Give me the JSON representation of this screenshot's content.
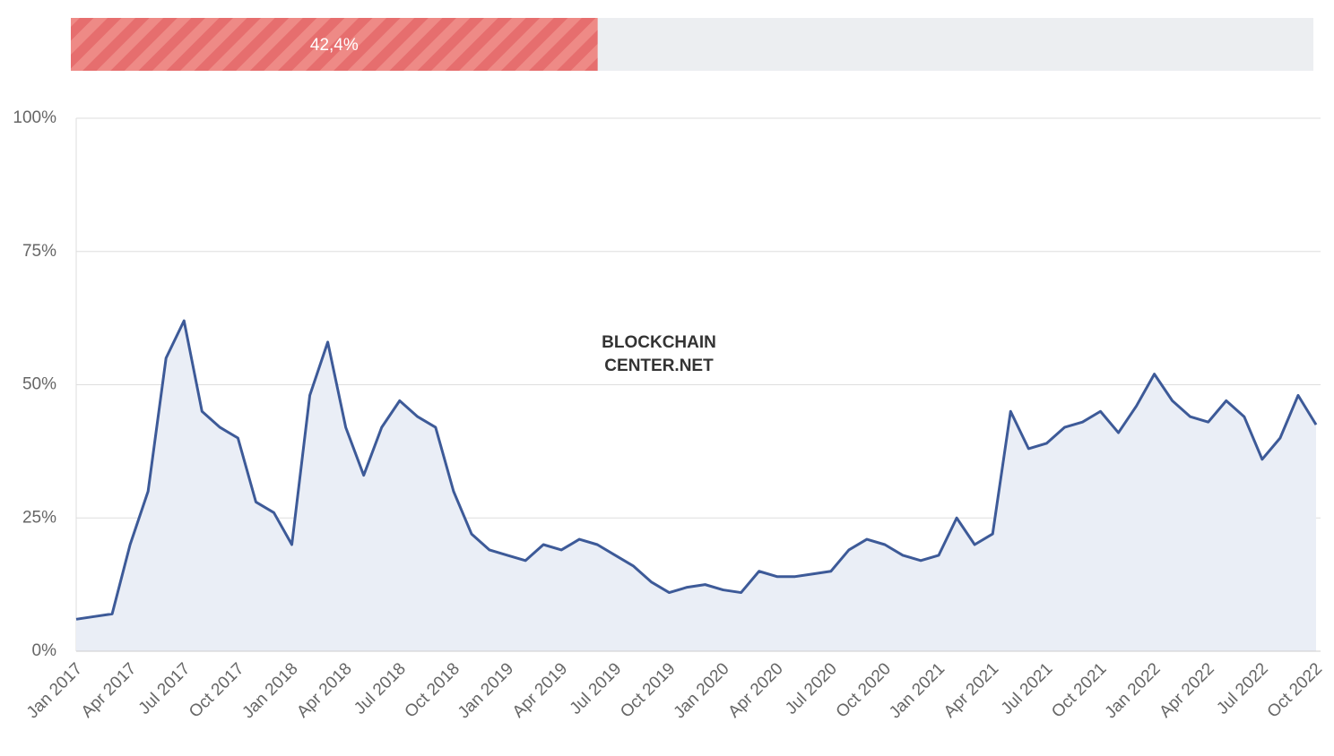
{
  "progress": {
    "value": 42.4,
    "label": "42,4%",
    "range": [
      0,
      100
    ]
  },
  "chart_data": {
    "type": "line",
    "watermark": [
      "BLOCKCHAIN",
      "CENTER.NET"
    ],
    "categories": [
      "Jan 2017",
      null,
      null,
      "Apr 2017",
      null,
      null,
      "Jul 2017",
      null,
      null,
      "Oct 2017",
      null,
      null,
      "Jan 2018",
      null,
      null,
      "Apr 2018",
      null,
      null,
      "Jul 2018",
      null,
      null,
      "Oct 2018",
      null,
      null,
      "Jan 2019",
      null,
      null,
      "Apr 2019",
      null,
      null,
      "Jul 2019",
      null,
      null,
      "Oct 2019",
      null,
      null,
      "Jan 2020",
      null,
      null,
      "Apr 2020",
      null,
      null,
      "Jul 2020",
      null,
      null,
      "Oct 2020",
      null,
      null,
      "Jan 2021",
      null,
      null,
      "Apr 2021",
      null,
      null,
      "Jul 2021",
      null,
      null,
      "Oct 2021",
      null,
      null,
      "Jan 2022",
      null,
      null,
      "Apr 2022",
      null,
      null,
      "Jul 2022",
      null,
      null,
      "Oct 2022"
    ],
    "series": [
      {
        "color": "#3d5a98",
        "fill": "#eaeef6",
        "values": [
          6,
          6.5,
          7,
          20,
          30,
          55,
          62,
          45,
          42,
          40,
          28,
          26,
          20,
          48,
          58,
          42,
          33,
          42,
          47,
          44,
          42,
          30,
          22,
          19,
          18,
          17,
          20,
          19,
          21,
          20,
          18,
          16,
          13,
          11,
          12,
          12.5,
          11.5,
          11,
          15,
          14,
          14,
          14.5,
          15,
          19,
          21,
          20,
          18,
          17,
          18,
          25,
          20,
          22,
          45,
          38,
          39,
          42,
          43,
          45,
          41,
          46,
          52,
          47,
          44,
          43,
          47,
          44,
          36,
          40,
          48,
          42.5
        ]
      }
    ],
    "ylim": [
      0,
      100
    ],
    "yticks": [
      {
        "value": 0,
        "label": "0%"
      },
      {
        "value": 25,
        "label": "25%"
      },
      {
        "value": 50,
        "label": "50%"
      },
      {
        "value": 75,
        "label": "75%"
      },
      {
        "value": 100,
        "label": "100%"
      }
    ],
    "grid": true
  }
}
